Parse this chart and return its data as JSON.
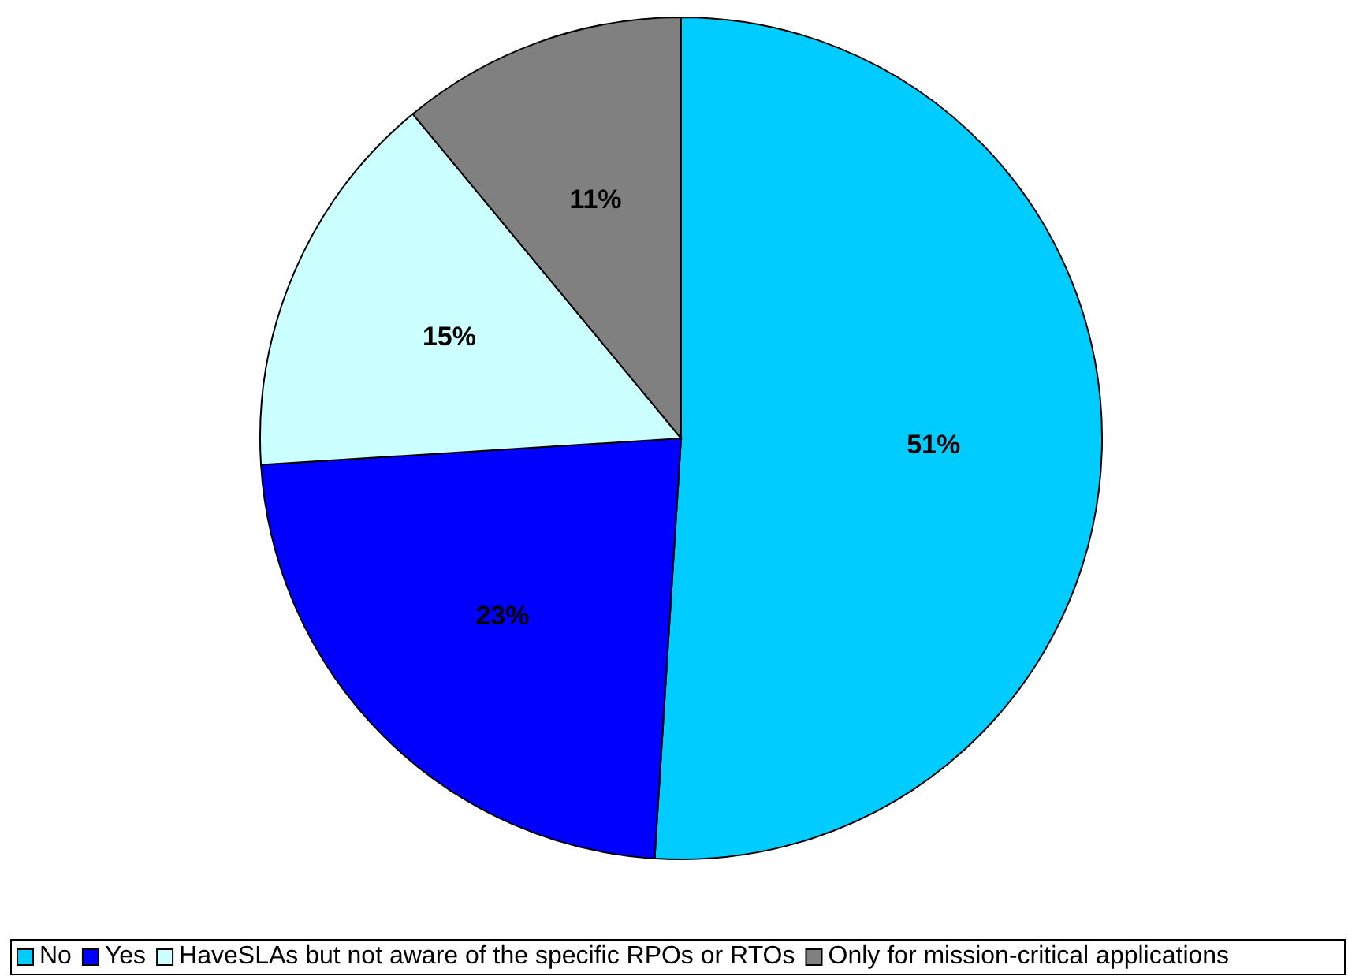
{
  "chart_data": {
    "type": "pie",
    "categories": [
      "No",
      "Yes",
      "HaveSLAs but not aware of the specific RPOs or RTOs",
      "Only for mission-critical applications"
    ],
    "values": [
      51,
      23,
      15,
      11
    ],
    "colors": [
      "#00ccff",
      "#0000ff",
      "#ccffff",
      "#808080"
    ],
    "value_labels": [
      "51%",
      "23%",
      "15%",
      "11%"
    ],
    "legend": "bottom"
  }
}
